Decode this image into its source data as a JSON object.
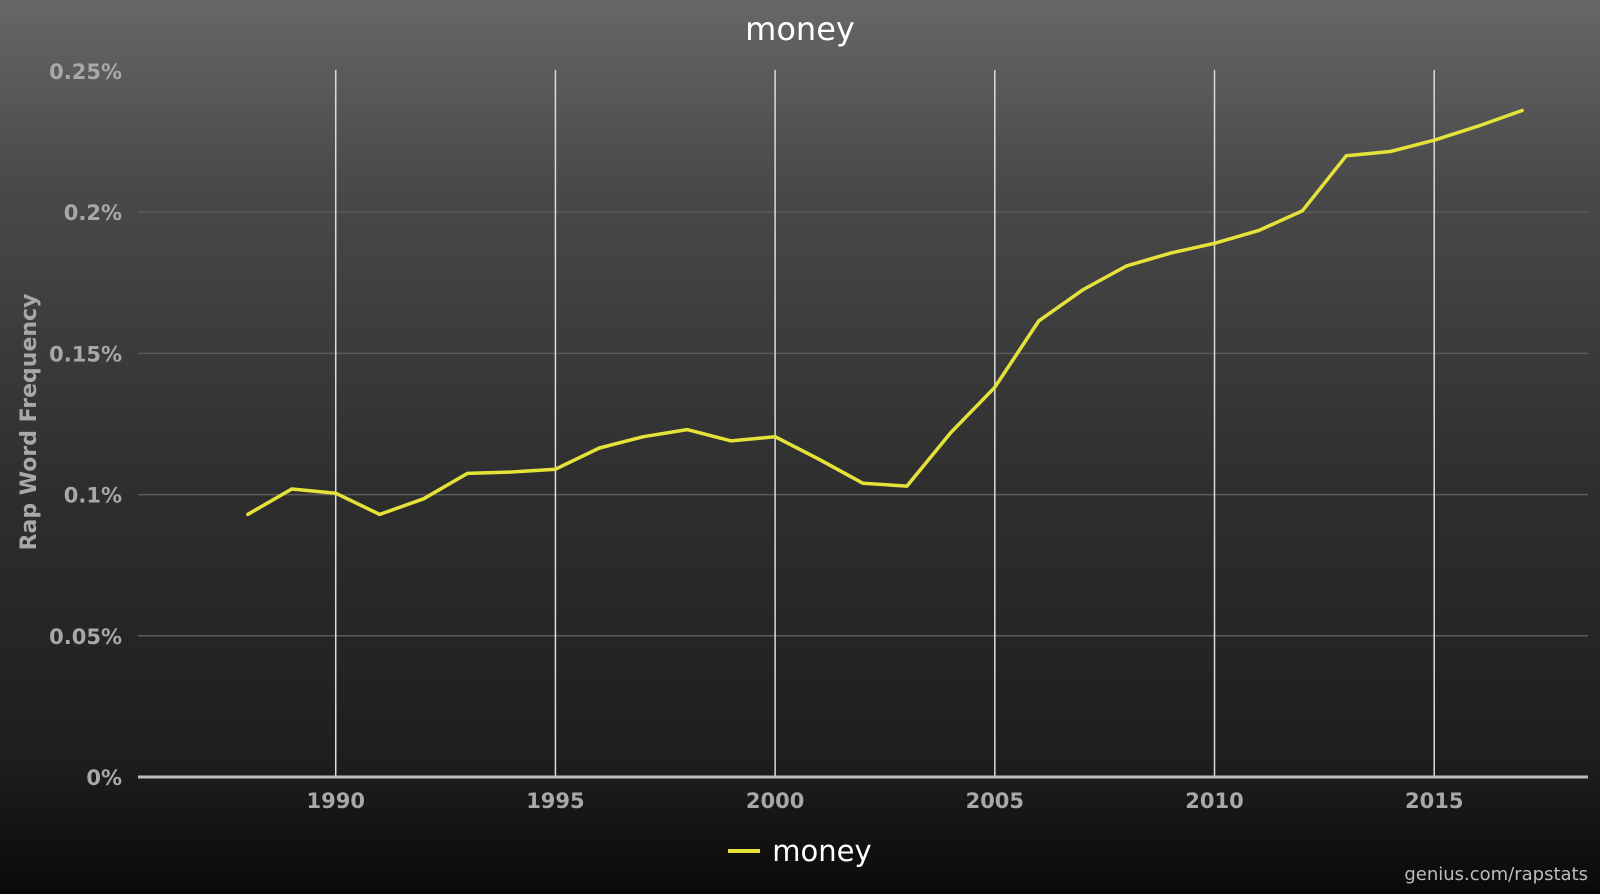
{
  "chart_data": {
    "type": "line",
    "title": "money",
    "xlabel": "",
    "ylabel": "Rap Word Frequency",
    "x": [
      1988,
      1989,
      1990,
      1991,
      1992,
      1993,
      1994,
      1995,
      1996,
      1997,
      1998,
      1999,
      2000,
      2001,
      2002,
      2003,
      2004,
      2005,
      2006,
      2007,
      2008,
      2009,
      2010,
      2011,
      2012,
      2013,
      2014,
      2015,
      2016,
      2017
    ],
    "series": [
      {
        "name": "money",
        "color": "#e5e23a",
        "values": [
          0.093,
          0.102,
          0.1005,
          0.093,
          0.0985,
          0.1075,
          0.108,
          0.109,
          0.1165,
          0.1205,
          0.123,
          0.119,
          0.1205,
          0.1125,
          0.104,
          0.103,
          0.122,
          0.138,
          0.1615,
          0.1725,
          0.181,
          0.1855,
          0.189,
          0.1935,
          0.2005,
          0.22,
          0.2215,
          0.2255,
          0.2305,
          0.236
        ]
      }
    ],
    "xlim": [
      1985.5,
      2018.5
    ],
    "ylim": [
      0,
      0.25
    ],
    "yticks": [
      0,
      0.05,
      0.1,
      0.15,
      0.2,
      0.25
    ],
    "ytick_labels": [
      "0%",
      "0.05%",
      "0.1%",
      "0.15%",
      "0.2%",
      "0.25%"
    ],
    "xticks": [
      1990,
      1995,
      2000,
      2005,
      2010,
      2015
    ],
    "xtick_labels": [
      "1990",
      "1995",
      "2000",
      "2005",
      "2010",
      "2015"
    ],
    "grid": true,
    "legend_position": "bottom-center"
  },
  "credit": "genius.com/rapstats",
  "colors": {
    "line": "#e5e23a",
    "vertical_grid": "#dcdcdc",
    "horizontal_grid": "#5a5a5a",
    "axis": "#bdbdbd"
  }
}
